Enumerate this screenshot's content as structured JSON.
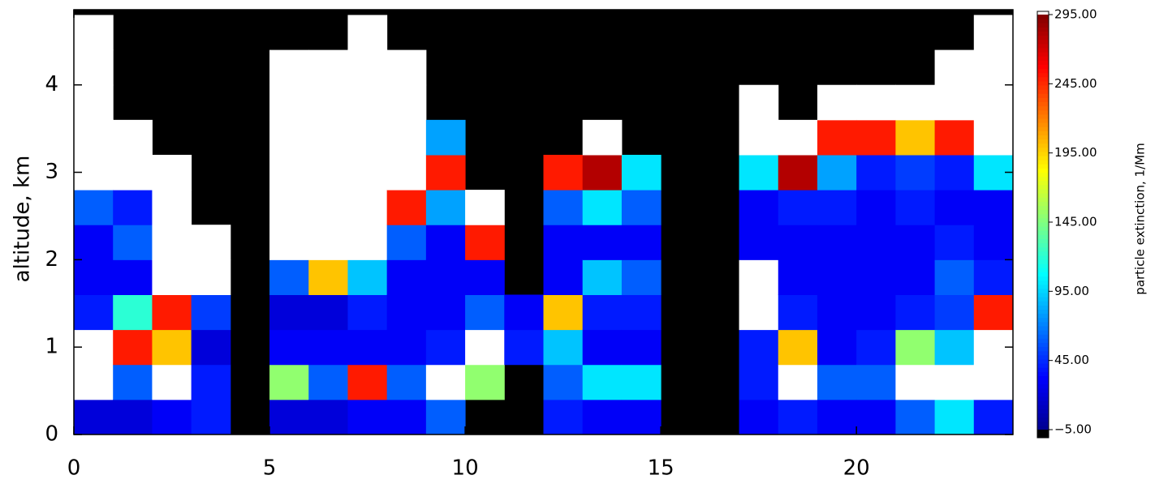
{
  "chart_data": {
    "type": "heatmap",
    "ylabel": "altitude,  km",
    "colorbar_label": "particle extinction, 1/Mm",
    "xlim": [
      0,
      24
    ],
    "ylim": [
      0,
      4.86
    ],
    "xticks": [
      0,
      5,
      10,
      15,
      20
    ],
    "yticks": [
      0,
      1,
      2,
      3,
      4
    ],
    "row_height": 0.4,
    "clim": [
      -5,
      295
    ],
    "cticks": [
      {
        "value": -5,
        "label": "−5.00"
      },
      {
        "value": 45,
        "label": "45.00"
      },
      {
        "value": 95,
        "label": "95.00"
      },
      {
        "value": 145,
        "label": "145.00"
      },
      {
        "value": 195,
        "label": "195.00"
      },
      {
        "value": 245,
        "label": "245.00"
      },
      {
        "value": 295,
        "label": "295.00"
      }
    ],
    "colormap": [
      "#00008f",
      "#0000ff",
      "#0080ff",
      "#00ffff",
      "#80ff80",
      "#ffff00",
      "#ff8000",
      "#ff0000",
      "#800000"
    ],
    "over_color": "#ffffff",
    "missing_color": "#000000",
    "values": [
      [
        20,
        400,
        400,
        40,
        30,
        30,
        60,
        400,
        400,
        400,
        400,
        400
      ],
      [
        20,
        60,
        250,
        120,
        30,
        60,
        40,
        400,
        400,
        null,
        null,
        null
      ],
      [
        30,
        400,
        200,
        250,
        400,
        400,
        400,
        400,
        null,
        null,
        null,
        null
      ],
      [
        40,
        40,
        20,
        50,
        400,
        400,
        null,
        null,
        null,
        null,
        null,
        null
      ],
      [
        null,
        null,
        null,
        null,
        null,
        null,
        null,
        null,
        null,
        null,
        null,
        null
      ],
      [
        20,
        150,
        30,
        20,
        60,
        400,
        400,
        400,
        400,
        400,
        300,
        null
      ],
      [
        20,
        60,
        30,
        20,
        200,
        400,
        400,
        400,
        400,
        400,
        400,
        null
      ],
      [
        30,
        250,
        30,
        40,
        90,
        300,
        400,
        400,
        400,
        400,
        400,
        400
      ],
      [
        30,
        60,
        30,
        30,
        30,
        60,
        250,
        400,
        400,
        400,
        400,
        null
      ],
      [
        60,
        400,
        40,
        30,
        30,
        30,
        80,
        250,
        80,
        null,
        null,
        null
      ],
      [
        null,
        150,
        400,
        60,
        30,
        250,
        400,
        null,
        null,
        null,
        null,
        null
      ],
      [
        null,
        null,
        40,
        30,
        null,
        null,
        null,
        null,
        null,
        null,
        null,
        null
      ],
      [
        40,
        60,
        90,
        200,
        30,
        30,
        60,
        250,
        null,
        null,
        null,
        null
      ],
      [
        30,
        100,
        30,
        40,
        90,
        30,
        100,
        280,
        400,
        null,
        null,
        null
      ],
      [
        30,
        100,
        30,
        40,
        60,
        30,
        60,
        100,
        null,
        null,
        null,
        null
      ],
      [
        null,
        null,
        null,
        null,
        null,
        null,
        null,
        null,
        null,
        null,
        null,
        null
      ],
      [
        null,
        null,
        null,
        null,
        null,
        null,
        null,
        null,
        null,
        null,
        null,
        null
      ],
      [
        30,
        40,
        40,
        300,
        400,
        30,
        30,
        100,
        300,
        400,
        null,
        null
      ],
      [
        40,
        400,
        200,
        40,
        30,
        30,
        40,
        280,
        400,
        null,
        null,
        null
      ],
      [
        30,
        60,
        30,
        30,
        30,
        30,
        40,
        80,
        250,
        400,
        null,
        null
      ],
      [
        30,
        60,
        40,
        30,
        30,
        30,
        30,
        40,
        250,
        400,
        null,
        null
      ],
      [
        60,
        400,
        150,
        40,
        30,
        30,
        40,
        50,
        200,
        400,
        null,
        null
      ],
      [
        100,
        400,
        90,
        50,
        60,
        40,
        30,
        40,
        250,
        400,
        400,
        null
      ],
      [
        40,
        400,
        300,
        250,
        40,
        30,
        30,
        100,
        300,
        400,
        400,
        400
      ]
    ]
  }
}
